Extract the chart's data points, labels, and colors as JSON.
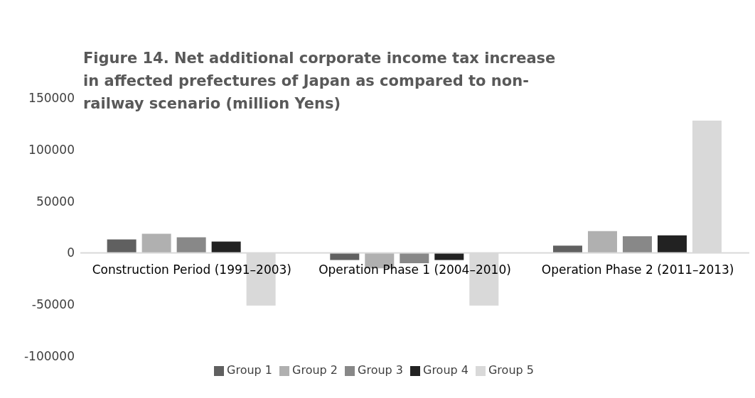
{
  "chart_data": {
    "type": "bar",
    "title": "Figure 14. Net additional corporate income tax increase in affected prefectures of Japan as compared to non-railway scenario (million Yens)",
    "categories": [
      "Construction Period (1991–2003)",
      "Operation Phase 1 (2004–2010)",
      "Operation Phase 2 (2011–2013)"
    ],
    "series": [
      {
        "name": "Group 1",
        "color": "#606060",
        "values": [
          13000,
          -7000,
          7000
        ]
      },
      {
        "name": "Group 2",
        "color": "#b0b0b0",
        "values": [
          18500,
          -15000,
          21000
        ]
      },
      {
        "name": "Group 3",
        "color": "#888888",
        "values": [
          15000,
          -10000,
          16000
        ]
      },
      {
        "name": "Group 4",
        "color": "#222222",
        "values": [
          11000,
          -7000,
          17000
        ]
      },
      {
        "name": "Group 5",
        "color": "#d9d9d9",
        "values": [
          -51000,
          -51000,
          128000
        ]
      }
    ],
    "ylim": [
      -100000,
      150000
    ],
    "yticks": [
      -100000,
      -50000,
      0,
      50000,
      100000,
      150000
    ],
    "grid": false,
    "legend": "bottom"
  }
}
